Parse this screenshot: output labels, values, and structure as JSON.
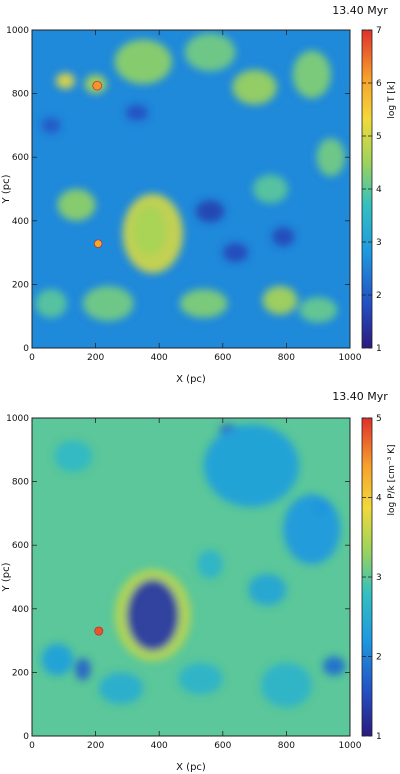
{
  "chart_data": [
    {
      "type": "heatmap",
      "quantity": "temperature",
      "time_label": "13.40 Myr",
      "xlabel": "X (pc)",
      "ylabel": "Y (pc)",
      "xlim": [
        0,
        1000
      ],
      "ylim": [
        0,
        1000
      ],
      "xticks": [
        0,
        200,
        400,
        600,
        800,
        1000
      ],
      "yticks": [
        0,
        200,
        400,
        600,
        800,
        1000
      ],
      "colorbar_label": "log T [k]",
      "colorbar_range": [
        1,
        7
      ],
      "colorbar_ticks": [
        1,
        2,
        3,
        4,
        5,
        6,
        7
      ],
      "background_level": 2.6,
      "features": [
        {
          "x": 380,
          "y": 360,
          "rx": 95,
          "ry": 125,
          "level": 5.0
        },
        {
          "x": 370,
          "y": 370,
          "rx": 55,
          "ry": 80,
          "level": 4.6
        },
        {
          "x": 140,
          "y": 450,
          "rx": 60,
          "ry": 50,
          "level": 4.4
        },
        {
          "x": 105,
          "y": 840,
          "rx": 30,
          "ry": 25,
          "level": 5.2
        },
        {
          "x": 200,
          "y": 830,
          "rx": 35,
          "ry": 30,
          "level": 4.6
        },
        {
          "x": 350,
          "y": 900,
          "rx": 90,
          "ry": 70,
          "level": 4.4
        },
        {
          "x": 560,
          "y": 930,
          "rx": 80,
          "ry": 60,
          "level": 4.2
        },
        {
          "x": 700,
          "y": 820,
          "rx": 70,
          "ry": 55,
          "level": 4.5
        },
        {
          "x": 880,
          "y": 860,
          "rx": 60,
          "ry": 75,
          "level": 4.3
        },
        {
          "x": 940,
          "y": 600,
          "rx": 45,
          "ry": 60,
          "level": 4.2
        },
        {
          "x": 750,
          "y": 500,
          "rx": 55,
          "ry": 45,
          "level": 4.0
        },
        {
          "x": 240,
          "y": 140,
          "rx": 80,
          "ry": 55,
          "level": 4.2
        },
        {
          "x": 540,
          "y": 140,
          "rx": 75,
          "ry": 45,
          "level": 4.3
        },
        {
          "x": 780,
          "y": 150,
          "rx": 55,
          "ry": 45,
          "level": 4.6
        },
        {
          "x": 60,
          "y": 140,
          "rx": 50,
          "ry": 45,
          "level": 4.0
        },
        {
          "x": 900,
          "y": 120,
          "rx": 60,
          "ry": 40,
          "level": 4.1
        }
      ],
      "cold_features": [
        {
          "x": 560,
          "y": 430,
          "rx": 45,
          "ry": 35,
          "level": 1.6
        },
        {
          "x": 640,
          "y": 300,
          "rx": 40,
          "ry": 30,
          "level": 1.7
        },
        {
          "x": 330,
          "y": 740,
          "rx": 35,
          "ry": 25,
          "level": 1.8
        },
        {
          "x": 790,
          "y": 350,
          "rx": 35,
          "ry": 30,
          "level": 1.7
        },
        {
          "x": 60,
          "y": 700,
          "rx": 30,
          "ry": 25,
          "level": 1.9
        }
      ],
      "hot_spots": [
        {
          "x": 205,
          "y": 825,
          "r": 14,
          "level": 6.2
        },
        {
          "x": 208,
          "y": 328,
          "r": 12,
          "level": 6.0
        }
      ]
    },
    {
      "type": "heatmap",
      "quantity": "pressure",
      "time_label": "13.40 Myr",
      "xlabel": "X (pc)",
      "ylabel": "Y (pc)",
      "xlim": [
        0,
        1000
      ],
      "ylim": [
        0,
        1000
      ],
      "xticks": [
        0,
        200,
        400,
        600,
        800,
        1000
      ],
      "yticks": [
        0,
        200,
        400,
        600,
        800,
        1000
      ],
      "colorbar_label": "log P/k [cm⁻³ K]",
      "colorbar_range": [
        1,
        5
      ],
      "colorbar_ticks": [
        1,
        2,
        3,
        4,
        5
      ],
      "background_level": 3.0,
      "features": [
        {
          "x": 380,
          "y": 380,
          "rx": 120,
          "ry": 145,
          "level": 3.5
        },
        {
          "x": 380,
          "y": 380,
          "rx": 82,
          "ry": 112,
          "level": 1.3
        },
        {
          "x": 690,
          "y": 850,
          "rx": 150,
          "ry": 130,
          "level": 2.3
        },
        {
          "x": 880,
          "y": 650,
          "rx": 90,
          "ry": 110,
          "level": 2.2
        },
        {
          "x": 740,
          "y": 460,
          "rx": 60,
          "ry": 50,
          "level": 2.4
        },
        {
          "x": 280,
          "y": 150,
          "rx": 70,
          "ry": 50,
          "level": 2.5
        },
        {
          "x": 530,
          "y": 180,
          "rx": 70,
          "ry": 50,
          "level": 2.6
        },
        {
          "x": 800,
          "y": 160,
          "rx": 80,
          "ry": 70,
          "level": 2.6
        },
        {
          "x": 130,
          "y": 880,
          "rx": 60,
          "ry": 50,
          "level": 2.7
        },
        {
          "x": 80,
          "y": 240,
          "rx": 50,
          "ry": 50,
          "level": 2.3
        },
        {
          "x": 950,
          "y": 220,
          "rx": 35,
          "ry": 30,
          "level": 1.8
        },
        {
          "x": 560,
          "y": 540,
          "rx": 40,
          "ry": 45,
          "level": 2.6
        }
      ],
      "cold_features": [
        {
          "x": 620,
          "y": 960,
          "rx": 30,
          "ry": 20,
          "level": 1.6
        },
        {
          "x": 160,
          "y": 210,
          "rx": 25,
          "ry": 35,
          "level": 1.7
        },
        {
          "x": 910,
          "y": 720,
          "rx": 25,
          "ry": 20,
          "level": 1.8
        }
      ],
      "hot_spots": [
        {
          "x": 210,
          "y": 330,
          "r": 13,
          "level": 4.8
        }
      ]
    }
  ]
}
